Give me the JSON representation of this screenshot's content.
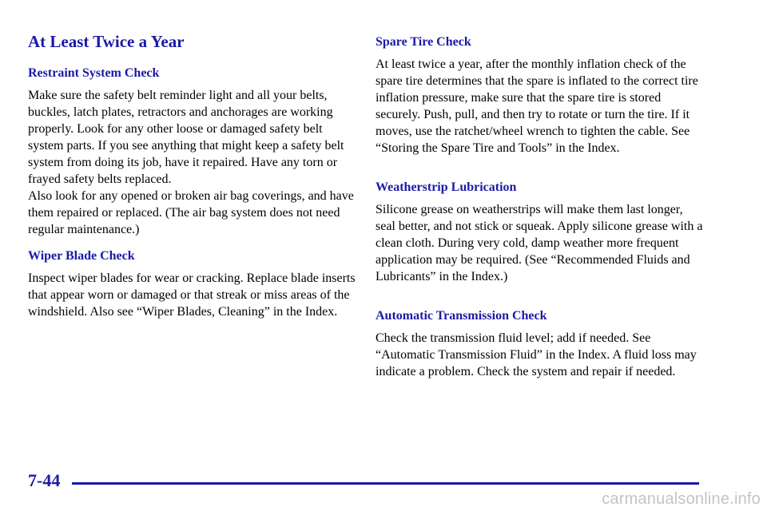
{
  "page": {
    "title": "At Least Twice a Year",
    "page_number": "7-44",
    "watermark": "carmanualsonline.info",
    "accent_color": "#1a1aa6"
  },
  "left_column": {
    "restraint": {
      "heading": "Restraint System Check",
      "paragraphs": [
        "Make sure the safety belt reminder light and all your belts, buckles, latch plates, retractors and anchorages are working properly. Look for any other loose or damaged safety belt system parts. If you see anything that might keep a safety belt system from doing its job, have it repaired. Have any torn or frayed safety belts replaced.",
        "Also look for any opened or broken air bag coverings, and have them repaired or replaced. (The air bag system does not need regular maintenance.)"
      ]
    },
    "wiper": {
      "heading": "Wiper Blade Check",
      "paragraphs": [
        "Inspect wiper blades for wear or cracking. Replace blade inserts that appear worn or damaged or that streak or miss areas of the windshield. Also see “Wiper Blades, Cleaning” in the Index."
      ]
    }
  },
  "right_column": {
    "spare_tire": {
      "heading": "Spare Tire Check",
      "paragraphs": [
        "At least twice a year, after the monthly inflation check of the spare tire determines that the spare is inflated to the correct tire inflation pressure, make sure that the spare tire is stored securely. Push, pull, and then try to rotate or turn the tire. If it moves, use the ratchet/wheel wrench to tighten the cable. See “Storing the Spare Tire and Tools” in the Index."
      ]
    },
    "weatherstrip": {
      "heading": "Weatherstrip Lubrication",
      "paragraphs": [
        "Silicone grease on weatherstrips will make them last longer, seal better, and not stick or squeak. Apply silicone grease with a clean cloth. During very cold, damp weather more frequent application may be required. (See “Recommended Fluids and Lubricants” in the Index.)"
      ]
    },
    "transmission": {
      "heading": "Automatic Transmission Check",
      "paragraphs": [
        "Check the transmission fluid level; add if needed. See “Automatic Transmission Fluid” in the Index. A fluid loss may indicate a problem. Check the system and repair if needed."
      ]
    }
  }
}
